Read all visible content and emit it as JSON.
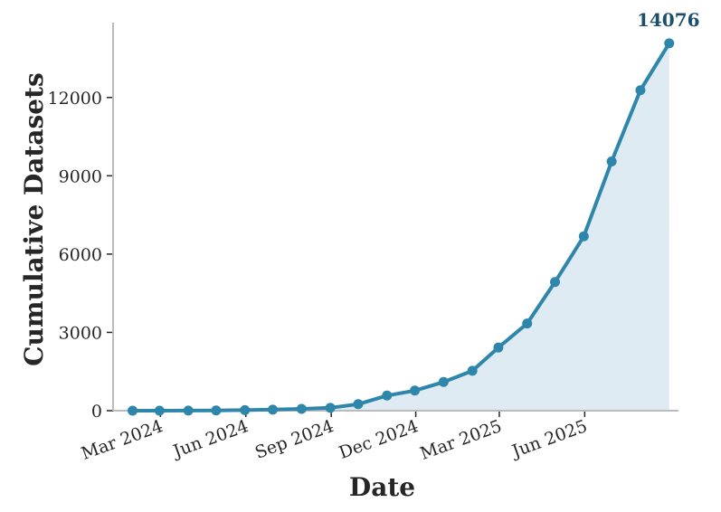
{
  "chart_data": {
    "type": "area",
    "title": "",
    "xlabel": "Date",
    "ylabel": "Cumulative Datasets",
    "x": [
      "2024-01-31",
      "2024-02-29",
      "2024-03-31",
      "2024-04-30",
      "2024-05-31",
      "2024-06-30",
      "2024-07-31",
      "2024-08-31",
      "2024-09-30",
      "2024-10-31",
      "2024-11-30",
      "2024-12-31",
      "2025-01-31",
      "2025-02-28",
      "2025-03-31",
      "2025-04-30",
      "2025-05-31",
      "2025-06-30",
      "2025-07-31",
      "2025-08-31"
    ],
    "series": [
      {
        "values": [
          0,
          0,
          5,
          10,
          20,
          40,
          70,
          110,
          250,
          580,
          770,
          1100,
          1530,
          2420,
          3340,
          4930,
          6680,
          9550,
          12280,
          14076
        ]
      }
    ],
    "x_ticks": [
      {
        "date": "2024-03-01",
        "label": "Mar 2024"
      },
      {
        "date": "2024-06-01",
        "label": "Jun 2024"
      },
      {
        "date": "2024-09-01",
        "label": "Sep 2024"
      },
      {
        "date": "2024-12-01",
        "label": "Dec 2024"
      },
      {
        "date": "2025-03-01",
        "label": "Mar 2025"
      },
      {
        "date": "2025-06-01",
        "label": "Jun 2025"
      }
    ],
    "y_ticks": [
      0,
      3000,
      6000,
      9000,
      12000
    ],
    "xlim": [
      "2024-01-10",
      "2025-09-10"
    ],
    "ylim": [
      0,
      14800
    ],
    "end_label": "14076",
    "grid": false,
    "colors": {
      "line": "#2e86ab",
      "fill": "#deebf3",
      "end_label": "#1b4f6a",
      "axis": "#bbbbbb",
      "text": "#262626"
    }
  }
}
